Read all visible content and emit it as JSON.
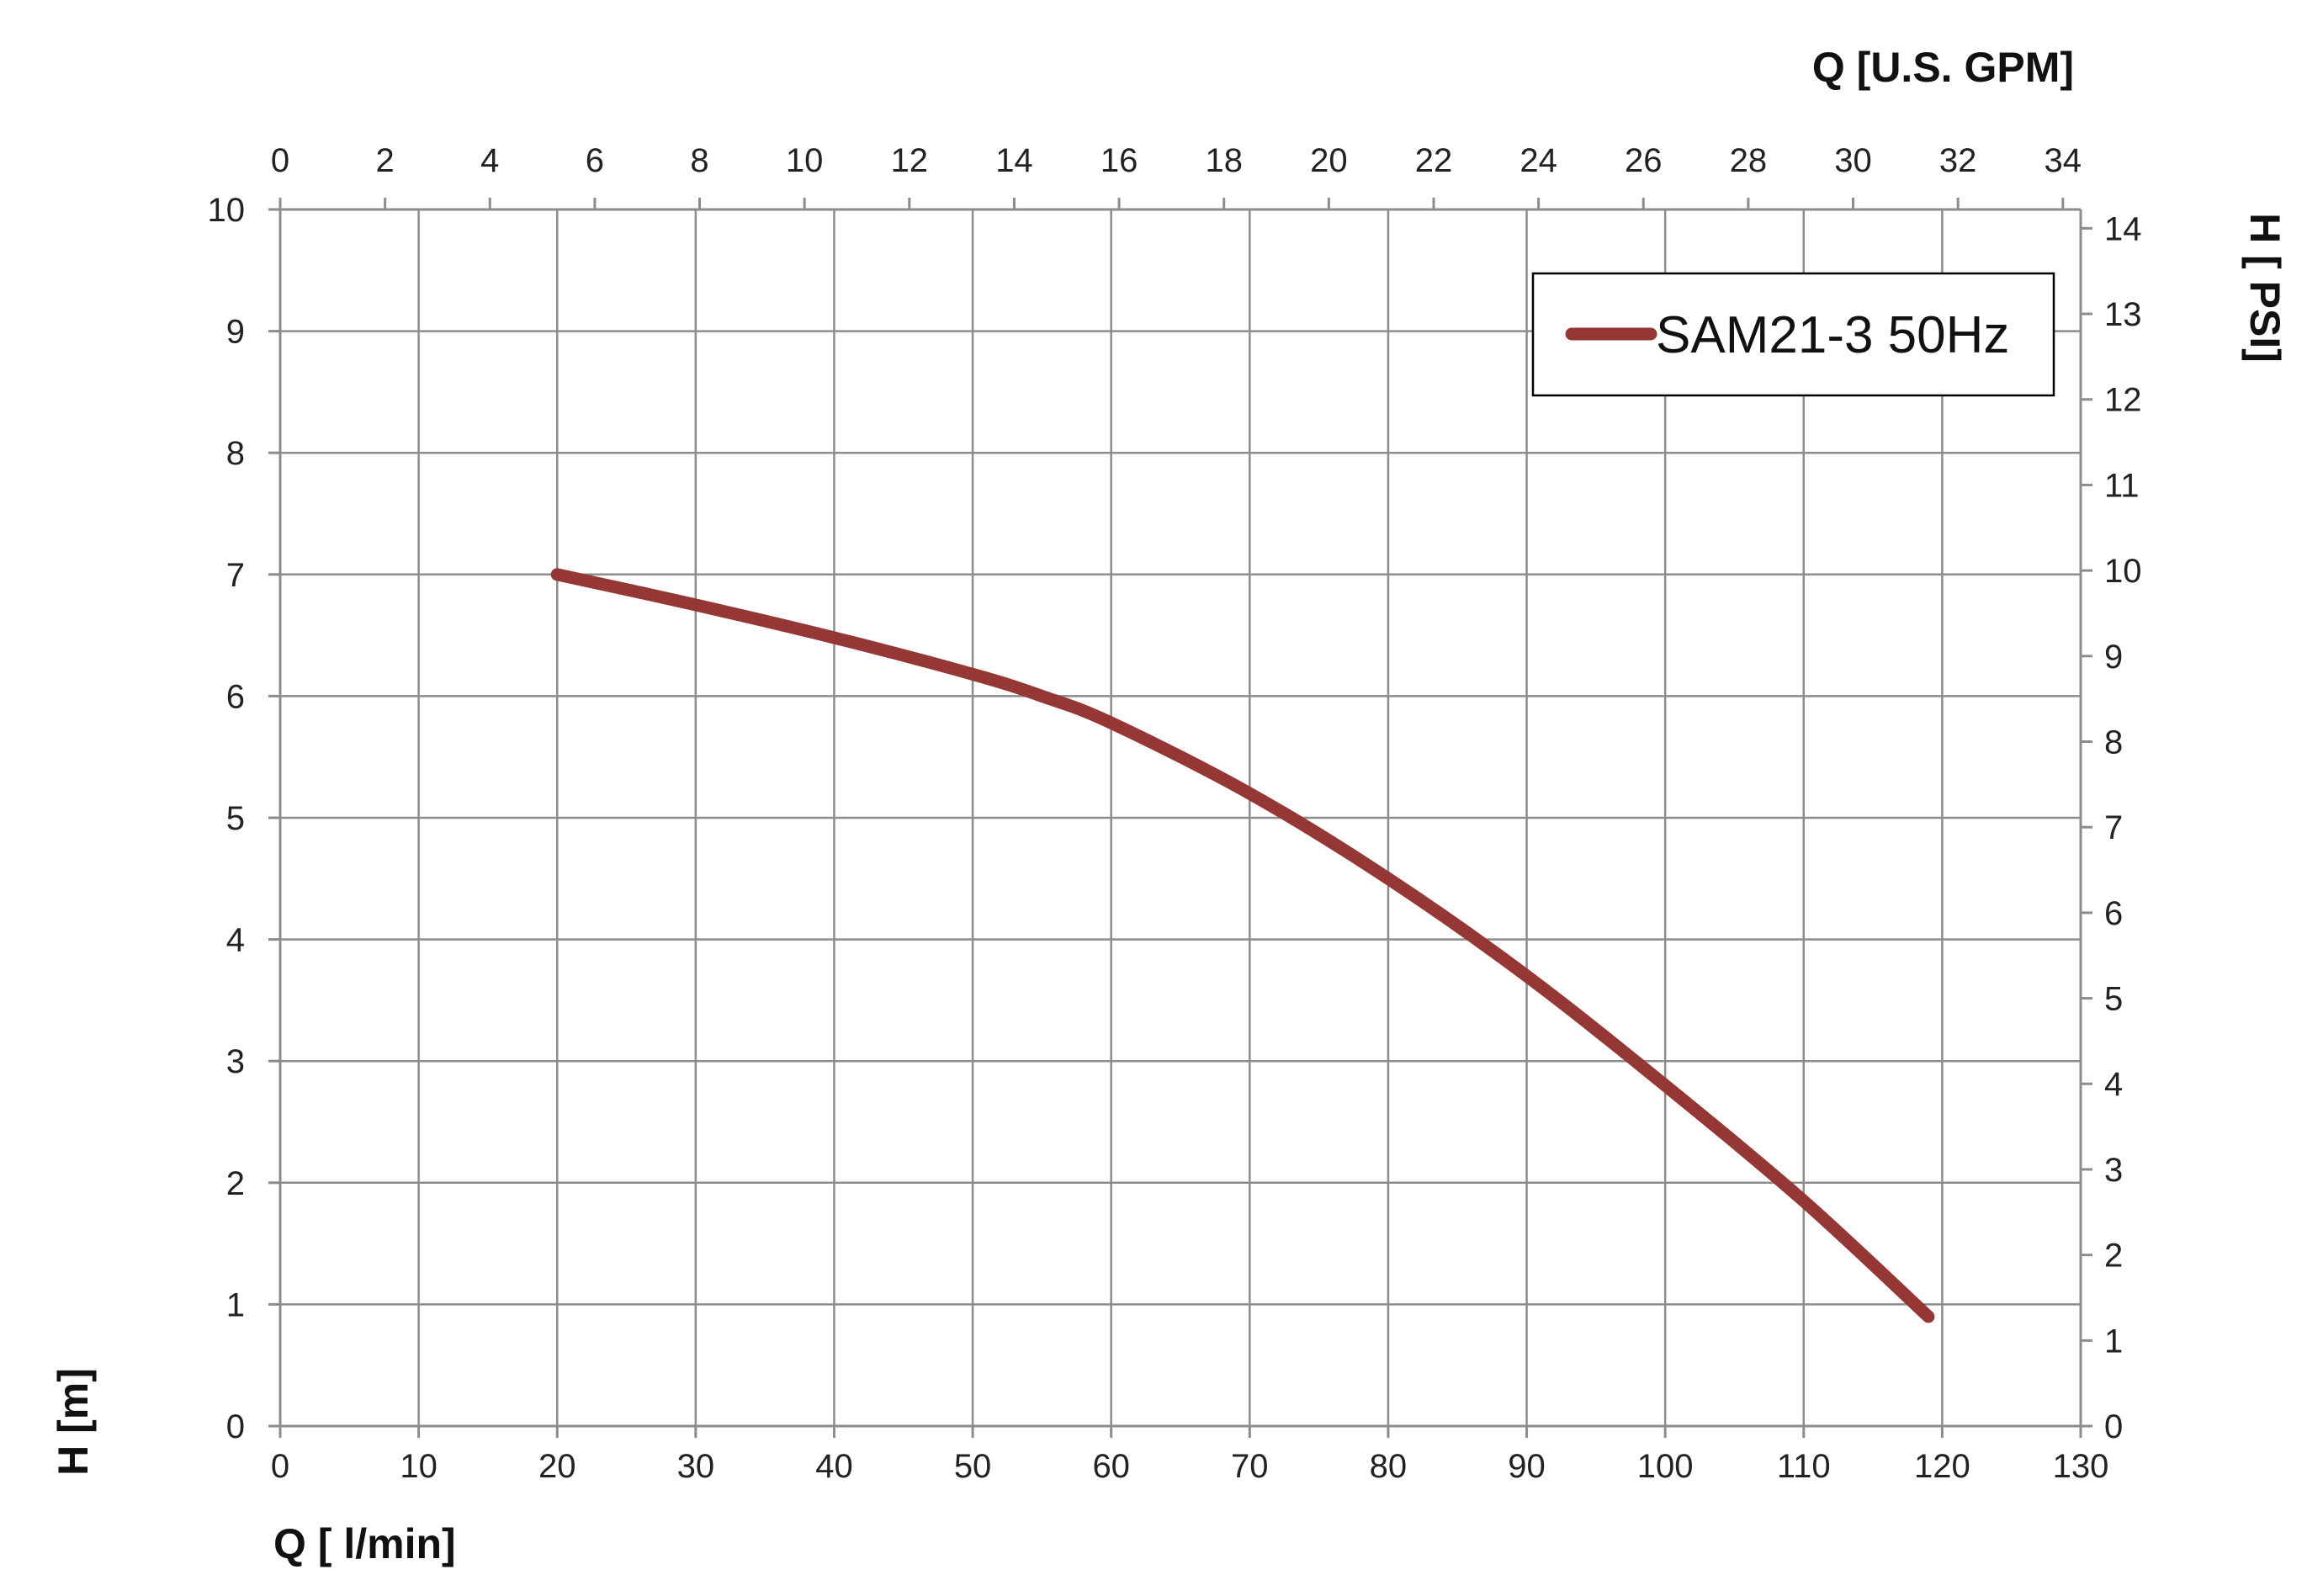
{
  "chart_data": {
    "type": "line",
    "series": [
      {
        "name": "SAM21-3 50Hz",
        "color": "#953735",
        "x": [
          20,
          30,
          40,
          50,
          55,
          60,
          70,
          80,
          90,
          100,
          110,
          119
        ],
        "y": [
          7.0,
          6.75,
          6.48,
          6.18,
          6.0,
          5.78,
          5.2,
          4.5,
          3.7,
          2.8,
          1.85,
          0.9
        ]
      }
    ],
    "xlabel": "Q [ l/min]",
    "ylabel": "H [m]",
    "x2label": "Q  [U.S. GPM]",
    "y2label": "H [ PSI]",
    "xlim": [
      0,
      130
    ],
    "ylim": [
      0,
      10
    ],
    "x2lim": [
      0,
      34.34
    ],
    "y2lim": [
      0,
      14.22
    ],
    "x_ticks": [
      "0",
      "10",
      "20",
      "30",
      "40",
      "50",
      "60",
      "70",
      "80",
      "90",
      "100",
      "110",
      "120",
      "130"
    ],
    "y_ticks": [
      "0",
      "1",
      "2",
      "3",
      "4",
      "5",
      "6",
      "7",
      "8",
      "9",
      "10"
    ],
    "x2_ticks": [
      "0",
      "2",
      "4",
      "6",
      "8",
      "10",
      "12",
      "14",
      "16",
      "18",
      "20",
      "22",
      "24",
      "26",
      "28",
      "30",
      "32",
      "34"
    ],
    "y2_ticks": [
      "0",
      "1",
      "2",
      "3",
      "4",
      "5",
      "6",
      "7",
      "8",
      "9",
      "10",
      "11",
      "12",
      "13",
      "14"
    ],
    "grid": true,
    "legend": "top-right"
  }
}
